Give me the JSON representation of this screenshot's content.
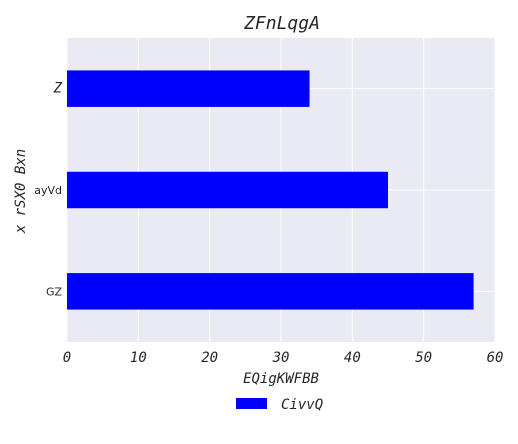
{
  "chart_data": {
    "type": "bar",
    "orientation": "horizontal",
    "title": "ZFnLqgA",
    "xlabel": "EQigKWFBB",
    "ylabel": "x rSX0 Bxn",
    "categories": [
      "GZ",
      "ayVd",
      "Z"
    ],
    "series": [
      {
        "name": "CivvQ",
        "values": [
          57,
          45,
          34
        ],
        "color": "#0000ff"
      }
    ],
    "xlim": [
      0,
      60
    ],
    "xticks": [
      0,
      10,
      20,
      30,
      40,
      50,
      60
    ],
    "grid": true,
    "background": "#eaeaf2",
    "legend_position": "bottom-center"
  }
}
